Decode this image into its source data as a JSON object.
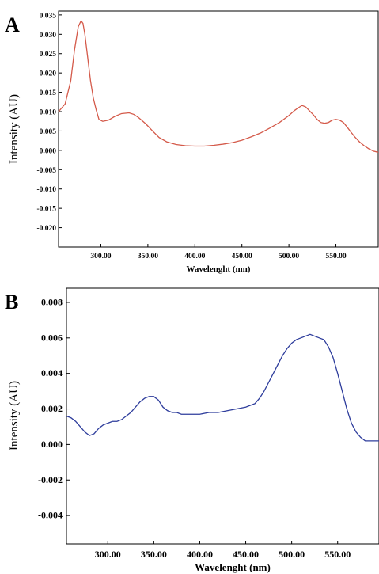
{
  "chart_data": [
    {
      "type": "line",
      "panel_label": "A",
      "xlabel": "Wavelenght (nm)",
      "ylabel": "Intensity  (AU)",
      "xlim": [
        255,
        595
      ],
      "ylim": [
        -0.025,
        0.036
      ],
      "xticks": [
        300,
        350,
        400,
        450,
        500,
        550
      ],
      "xtick_labels": [
        "300.00",
        "350.00",
        "400.00",
        "450.00",
        "500.00",
        "550.00"
      ],
      "yticks": [
        0.035,
        0.03,
        0.025,
        0.02,
        0.015,
        0.01,
        0.005,
        0.0,
        -0.005,
        -0.01,
        -0.015,
        -0.02
      ],
      "ytick_labels": [
        "0.035",
        "0.030",
        "0.025",
        "0.020",
        "0.015",
        "0.010",
        "0.005",
        "0.000",
        "-0.005",
        "-0.010",
        "-0.015",
        "-0.020"
      ],
      "color": "#d45a4a",
      "series": [
        {
          "x": [
            255,
            262,
            268,
            272,
            276,
            279,
            281,
            283,
            286,
            289,
            292,
            295,
            298,
            302,
            308,
            315,
            322,
            330,
            335,
            340,
            348,
            355,
            362,
            370,
            380,
            390,
            400,
            410,
            420,
            430,
            440,
            450,
            460,
            470,
            480,
            490,
            500,
            506,
            510,
            514,
            518,
            522,
            526,
            530,
            534,
            538,
            542,
            546,
            550,
            554,
            558,
            562,
            566,
            570,
            575,
            580,
            585,
            590,
            595
          ],
          "y": [
            0.01,
            0.012,
            0.018,
            0.026,
            0.032,
            0.0335,
            0.0328,
            0.03,
            0.024,
            0.018,
            0.0135,
            0.0105,
            0.008,
            0.0075,
            0.0078,
            0.0088,
            0.0095,
            0.0097,
            0.0093,
            0.0085,
            0.0068,
            0.005,
            0.0033,
            0.0022,
            0.0015,
            0.0012,
            0.0011,
            0.0011,
            0.0013,
            0.0016,
            0.002,
            0.0026,
            0.0035,
            0.0045,
            0.0058,
            0.0072,
            0.009,
            0.0103,
            0.011,
            0.0116,
            0.0112,
            0.0102,
            0.0092,
            0.008,
            0.0072,
            0.007,
            0.0072,
            0.0078,
            0.008,
            0.0078,
            0.0072,
            0.006,
            0.0047,
            0.0035,
            0.0022,
            0.0012,
            0.0004,
            -0.0002,
            -0.0005
          ]
        }
      ]
    },
    {
      "type": "line",
      "panel_label": "B",
      "xlabel": "Wavelenght (nm)",
      "ylabel": "Intensity  (AU)",
      "xlim": [
        255,
        595
      ],
      "ylim": [
        -0.0056,
        0.0088
      ],
      "xticks": [
        300,
        350,
        400,
        450,
        500,
        550
      ],
      "xtick_labels": [
        "300.00",
        "350.00",
        "400.00",
        "450.00",
        "500.00",
        "550.00"
      ],
      "yticks": [
        0.008,
        0.006,
        0.004,
        0.002,
        0.0,
        -0.002,
        -0.004
      ],
      "ytick_labels": [
        "0.008",
        "0.006",
        "0.004",
        "0.002",
        "0.000",
        "-0.002",
        "-0.004"
      ],
      "color": "#2e3d9c",
      "series": [
        {
          "x": [
            255,
            260,
            265,
            270,
            275,
            280,
            285,
            290,
            295,
            300,
            305,
            310,
            315,
            320,
            325,
            330,
            335,
            340,
            345,
            350,
            355,
            360,
            365,
            370,
            375,
            380,
            385,
            390,
            395,
            400,
            410,
            420,
            430,
            440,
            450,
            455,
            460,
            465,
            470,
            475,
            480,
            485,
            490,
            495,
            500,
            505,
            510,
            515,
            520,
            525,
            530,
            535,
            540,
            545,
            550,
            555,
            560,
            565,
            570,
            575,
            580,
            585,
            590,
            595
          ],
          "y": [
            0.0016,
            0.0015,
            0.0013,
            0.001,
            0.0007,
            0.0005,
            0.0006,
            0.0009,
            0.0011,
            0.0012,
            0.0013,
            0.0013,
            0.0014,
            0.0016,
            0.0018,
            0.0021,
            0.0024,
            0.0026,
            0.0027,
            0.0027,
            0.0025,
            0.0021,
            0.0019,
            0.0018,
            0.0018,
            0.0017,
            0.0017,
            0.0017,
            0.0017,
            0.0017,
            0.0018,
            0.0018,
            0.0019,
            0.002,
            0.0021,
            0.0022,
            0.0023,
            0.0026,
            0.003,
            0.0035,
            0.004,
            0.0045,
            0.005,
            0.0054,
            0.0057,
            0.0059,
            0.006,
            0.0061,
            0.0062,
            0.0061,
            0.006,
            0.0059,
            0.0055,
            0.0049,
            0.004,
            0.003,
            0.002,
            0.0012,
            0.0007,
            0.0004,
            0.0002,
            0.0002,
            0.0002,
            0.0002
          ]
        }
      ]
    }
  ]
}
